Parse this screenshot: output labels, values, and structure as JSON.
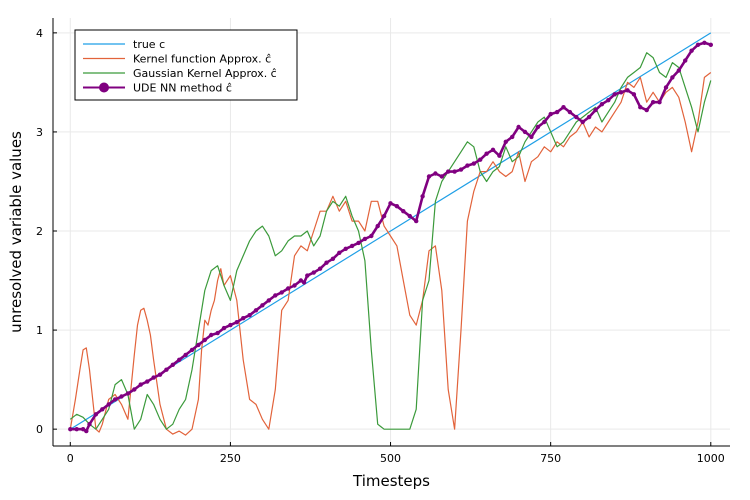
{
  "chart_data": {
    "type": "line",
    "title": "",
    "xlabel": "Timesteps",
    "ylabel": "unresolved variable values",
    "xlim": [
      -27,
      1030
    ],
    "ylim": [
      -0.17,
      4.15
    ],
    "xticks": [
      0,
      250,
      500,
      750,
      1000
    ],
    "xtick_labels": [
      "0",
      "250",
      "500",
      "750",
      "1000"
    ],
    "yticks": [
      0,
      1,
      2,
      3,
      4
    ],
    "ytick_labels": [
      "0",
      "1",
      "2",
      "3",
      "4"
    ],
    "grid": true,
    "legend": {
      "position": "top-left",
      "entries": [
        {
          "label": "true c",
          "color": "#1f9fe6",
          "marker": "line"
        },
        {
          "label": "Kernel function Approx. ĉ",
          "color": "#e2633b",
          "marker": "line"
        },
        {
          "label": "Gaussian Kernel Approx. ĉ",
          "color": "#3b9a3b",
          "marker": "line"
        },
        {
          "label": "UDE NN method ĉ",
          "color": "#800080",
          "marker": "dot-line"
        }
      ]
    },
    "series": [
      {
        "name": "true c",
        "color": "#1f9fe6",
        "style": "line",
        "x": [
          0,
          1000
        ],
        "y": [
          0,
          4.0
        ]
      },
      {
        "name": "Kernel function Approx. ĉ",
        "color": "#e2633b",
        "style": "line",
        "x": [
          0,
          8,
          15,
          20,
          25,
          30,
          35,
          40,
          45,
          50,
          60,
          70,
          80,
          90,
          100,
          105,
          110,
          115,
          120,
          125,
          130,
          140,
          150,
          160,
          170,
          180,
          190,
          200,
          205,
          210,
          215,
          220,
          225,
          230,
          235,
          240,
          250,
          260,
          270,
          280,
          290,
          300,
          310,
          320,
          330,
          340,
          350,
          360,
          370,
          380,
          390,
          400,
          410,
          420,
          430,
          440,
          450,
          460,
          470,
          480,
          490,
          500,
          510,
          520,
          530,
          540,
          550,
          560,
          570,
          580,
          590,
          600,
          610,
          620,
          630,
          640,
          650,
          660,
          670,
          680,
          690,
          700,
          710,
          720,
          730,
          740,
          750,
          760,
          770,
          780,
          790,
          800,
          810,
          820,
          830,
          840,
          850,
          860,
          870,
          880,
          890,
          900,
          910,
          920,
          930,
          940,
          950,
          960,
          970,
          980,
          990,
          1000
        ],
        "y": [
          0.0,
          0.3,
          0.6,
          0.8,
          0.82,
          0.6,
          0.3,
          0.0,
          -0.03,
          0.05,
          0.3,
          0.35,
          0.25,
          0.1,
          0.75,
          1.05,
          1.2,
          1.22,
          1.1,
          0.95,
          0.7,
          0.25,
          0.0,
          -0.05,
          -0.02,
          -0.06,
          0.0,
          0.3,
          0.8,
          1.1,
          1.05,
          1.2,
          1.3,
          1.5,
          1.62,
          1.45,
          1.55,
          1.3,
          0.7,
          0.3,
          0.25,
          0.1,
          0.0,
          0.4,
          1.2,
          1.3,
          1.75,
          1.85,
          1.8,
          2.0,
          2.2,
          2.2,
          2.35,
          2.2,
          2.3,
          2.1,
          2.1,
          2.0,
          2.3,
          2.3,
          2.05,
          1.95,
          1.85,
          1.5,
          1.15,
          1.05,
          1.3,
          1.8,
          1.85,
          1.4,
          0.4,
          0.0,
          1.0,
          2.1,
          2.4,
          2.6,
          2.6,
          2.7,
          2.6,
          2.55,
          2.6,
          2.8,
          2.5,
          2.7,
          2.75,
          2.85,
          2.8,
          2.9,
          2.85,
          2.95,
          3.0,
          3.1,
          2.95,
          3.05,
          3.0,
          3.1,
          3.2,
          3.3,
          3.5,
          3.45,
          3.55,
          3.3,
          3.4,
          3.3,
          3.4,
          3.45,
          3.35,
          3.1,
          2.8,
          3.1,
          3.55,
          3.6
        ]
      },
      {
        "name": "Gaussian Kernel Approx. ĉ",
        "color": "#3b9a3b",
        "style": "line",
        "x": [
          0,
          10,
          20,
          30,
          40,
          50,
          60,
          70,
          80,
          90,
          100,
          110,
          120,
          130,
          140,
          150,
          160,
          170,
          180,
          190,
          200,
          210,
          220,
          230,
          240,
          250,
          260,
          270,
          280,
          290,
          300,
          310,
          320,
          330,
          340,
          350,
          360,
          370,
          380,
          390,
          400,
          410,
          420,
          430,
          440,
          450,
          460,
          470,
          480,
          490,
          500,
          510,
          520,
          530,
          540,
          550,
          560,
          570,
          580,
          590,
          600,
          610,
          620,
          630,
          640,
          650,
          660,
          670,
          680,
          690,
          700,
          710,
          720,
          730,
          740,
          750,
          760,
          770,
          780,
          790,
          800,
          810,
          820,
          830,
          840,
          850,
          860,
          870,
          880,
          890,
          900,
          910,
          920,
          930,
          940,
          950,
          960,
          970,
          980,
          990,
          1000
        ],
        "y": [
          0.1,
          0.15,
          0.12,
          0.05,
          0.0,
          0.1,
          0.2,
          0.45,
          0.5,
          0.35,
          0.0,
          0.1,
          0.35,
          0.25,
          0.1,
          0.0,
          0.05,
          0.2,
          0.3,
          0.6,
          1.0,
          1.4,
          1.6,
          1.65,
          1.45,
          1.3,
          1.6,
          1.75,
          1.9,
          2.0,
          2.05,
          1.95,
          1.75,
          1.8,
          1.9,
          1.95,
          1.95,
          2.0,
          1.85,
          1.95,
          2.2,
          2.3,
          2.25,
          2.35,
          2.15,
          2.0,
          1.7,
          0.8,
          0.05,
          0.0,
          0.0,
          0.0,
          0.0,
          0.0,
          0.2,
          1.3,
          1.5,
          2.3,
          2.5,
          2.6,
          2.7,
          2.8,
          2.9,
          2.85,
          2.6,
          2.5,
          2.6,
          2.65,
          2.85,
          2.7,
          2.75,
          2.9,
          3.0,
          3.1,
          3.15,
          3.0,
          2.85,
          2.9,
          3.0,
          3.1,
          3.15,
          3.2,
          3.25,
          3.1,
          3.2,
          3.3,
          3.45,
          3.55,
          3.6,
          3.65,
          3.8,
          3.75,
          3.6,
          3.55,
          3.7,
          3.65,
          3.45,
          3.25,
          3.0,
          3.3,
          3.52
        ]
      },
      {
        "name": "UDE NN method ĉ",
        "color": "#800080",
        "style": "dot-line",
        "x": [
          0,
          10,
          20,
          25,
          30,
          40,
          50,
          60,
          70,
          80,
          90,
          100,
          110,
          120,
          130,
          140,
          150,
          160,
          170,
          180,
          190,
          200,
          210,
          220,
          230,
          240,
          250,
          260,
          270,
          280,
          290,
          300,
          310,
          320,
          330,
          340,
          350,
          360,
          365,
          370,
          380,
          390,
          400,
          410,
          420,
          430,
          440,
          450,
          460,
          470,
          480,
          490,
          500,
          510,
          520,
          530,
          540,
          550,
          560,
          570,
          580,
          590,
          600,
          610,
          620,
          630,
          640,
          650,
          660,
          670,
          680,
          690,
          700,
          710,
          720,
          730,
          740,
          750,
          760,
          770,
          780,
          790,
          800,
          810,
          820,
          830,
          840,
          850,
          860,
          870,
          880,
          890,
          900,
          910,
          920,
          930,
          940,
          950,
          960,
          970,
          980,
          990,
          1000
        ],
        "y": [
          0.0,
          0.0,
          0.0,
          -0.02,
          0.05,
          0.15,
          0.2,
          0.25,
          0.3,
          0.33,
          0.36,
          0.4,
          0.45,
          0.48,
          0.52,
          0.55,
          0.6,
          0.65,
          0.7,
          0.75,
          0.8,
          0.85,
          0.9,
          0.95,
          0.97,
          1.02,
          1.05,
          1.08,
          1.12,
          1.15,
          1.2,
          1.25,
          1.3,
          1.35,
          1.38,
          1.42,
          1.45,
          1.5,
          1.48,
          1.55,
          1.58,
          1.62,
          1.68,
          1.72,
          1.78,
          1.82,
          1.85,
          1.88,
          1.92,
          1.95,
          2.05,
          2.15,
          2.28,
          2.25,
          2.2,
          2.15,
          2.1,
          2.35,
          2.55,
          2.58,
          2.55,
          2.6,
          2.6,
          2.62,
          2.66,
          2.68,
          2.72,
          2.78,
          2.82,
          2.76,
          2.9,
          2.95,
          3.05,
          3.0,
          2.95,
          3.05,
          3.1,
          3.18,
          3.2,
          3.25,
          3.2,
          3.15,
          3.1,
          3.15,
          3.22,
          3.28,
          3.32,
          3.38,
          3.4,
          3.42,
          3.38,
          3.25,
          3.22,
          3.3,
          3.3,
          3.45,
          3.55,
          3.62,
          3.72,
          3.82,
          3.88,
          3.9,
          3.88
        ]
      }
    ]
  }
}
